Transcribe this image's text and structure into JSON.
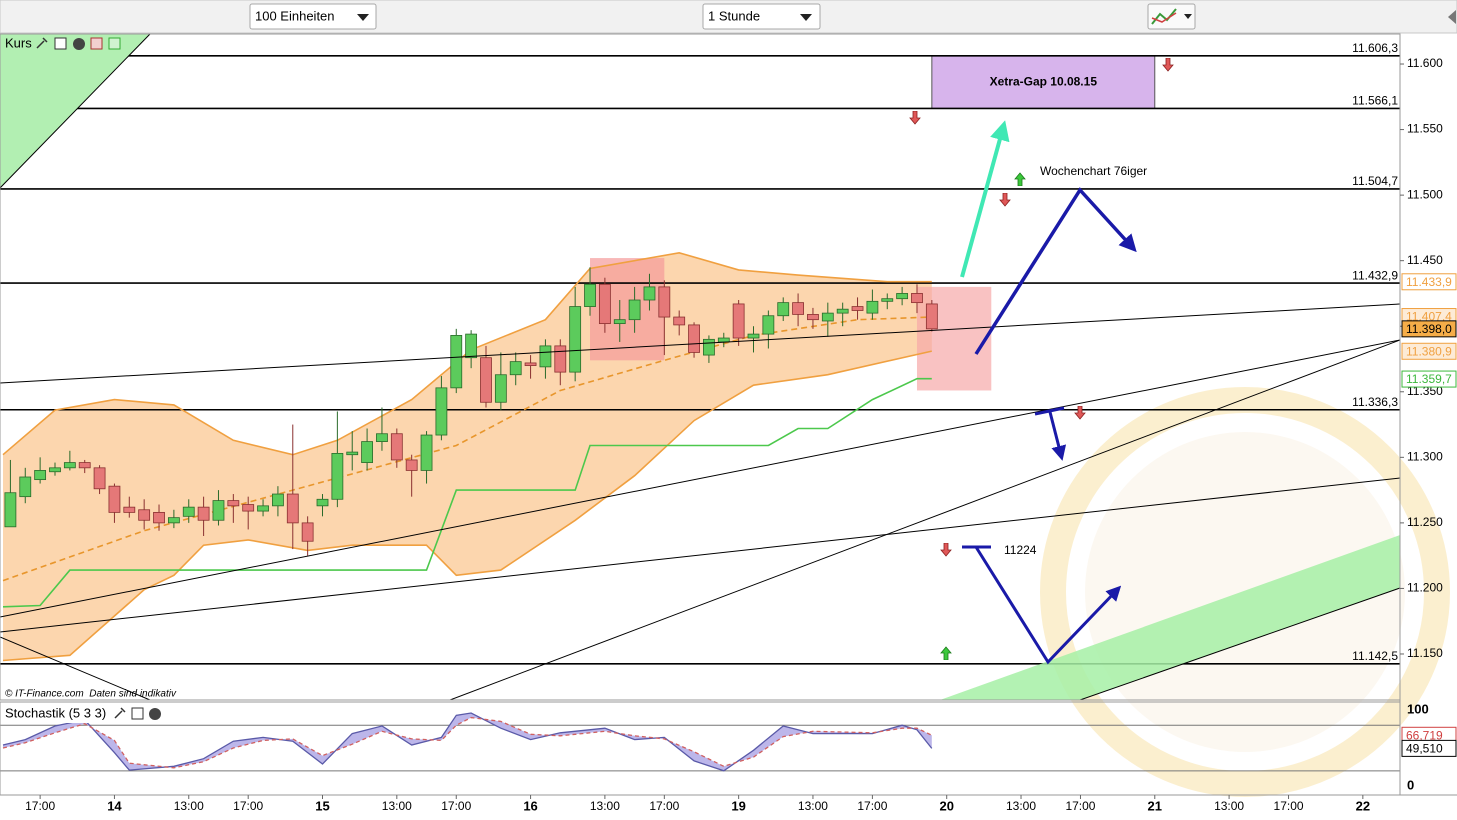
{
  "toolbar": {
    "units": "100 Einheiten",
    "interval": "1 Stunde"
  },
  "annotations": [
    "Wochenchart 76iger",
    "11224"
  ],
  "chart_data": [
    {
      "type": "candlestick",
      "title": "Kurs",
      "source": "© IT-Finance.com  Daten sind indikativ",
      "x": [
        -7,
        -6,
        -5,
        -4,
        -3,
        -2,
        -1,
        0,
        1,
        2,
        3,
        4,
        5,
        6,
        7,
        8,
        9,
        10,
        11,
        12,
        13,
        14,
        15,
        16,
        17,
        18,
        19,
        20,
        21,
        22,
        23,
        24,
        25,
        26,
        27,
        28,
        29,
        30,
        31,
        32,
        33,
        34,
        35,
        36,
        37,
        38,
        39,
        40,
        41,
        42,
        43,
        44,
        45,
        46,
        47,
        48,
        49,
        50,
        51,
        52,
        53,
        54,
        55
      ],
      "open": [
        11247,
        11270,
        11283,
        11289,
        11292,
        11296,
        11292,
        11278,
        11262,
        11260,
        11258,
        11250,
        11255,
        11262,
        11252,
        11267,
        11264,
        11259,
        11263,
        11272,
        11250,
        11263,
        11268,
        11302,
        11296,
        11312,
        11318,
        11298,
        11290,
        11317,
        11353,
        11376,
        11376,
        11342,
        11363,
        11372,
        11369,
        11385,
        11365,
        11415,
        11432,
        11402,
        11405,
        11420,
        11430,
        11407,
        11401,
        11378,
        11388,
        11417,
        11391,
        11394,
        11408,
        11418,
        11409,
        11404,
        11410,
        11415,
        11410,
        11419,
        11421,
        11425,
        11417
      ],
      "high": [
        11298,
        11292,
        11300,
        11296,
        11305,
        11298,
        11294,
        11280,
        11270,
        11268,
        11264,
        11260,
        11268,
        11270,
        11275,
        11272,
        11270,
        11268,
        11278,
        11325,
        11255,
        11272,
        11335,
        11320,
        11322,
        11338,
        11322,
        11302,
        11320,
        11362,
        11398,
        11397,
        11385,
        11380,
        11380,
        11378,
        11390,
        11390,
        11430,
        11445,
        11437,
        11420,
        11430,
        11440,
        11435,
        11412,
        11403,
        11393,
        11395,
        11420,
        11400,
        11412,
        11422,
        11425,
        11414,
        11418,
        11418,
        11422,
        11428,
        11425,
        11430,
        11432,
        11420
      ],
      "low": [
        11247,
        11265,
        11280,
        11286,
        11290,
        11288,
        11272,
        11250,
        11254,
        11245,
        11244,
        11246,
        11250,
        11240,
        11248,
        11250,
        11245,
        11255,
        11255,
        11230,
        11225,
        11255,
        11262,
        11290,
        11290,
        11305,
        11292,
        11270,
        11280,
        11313,
        11349,
        11368,
        11338,
        11336,
        11355,
        11360,
        11360,
        11355,
        11358,
        11408,
        11395,
        11388,
        11395,
        11412,
        11378,
        11393,
        11376,
        11372,
        11384,
        11385,
        11380,
        11383,
        11404,
        11400,
        11398,
        11392,
        11400,
        11405,
        11405,
        11413,
        11416,
        11410,
        11396
      ],
      "close": [
        11273,
        11285,
        11290,
        11292,
        11296,
        11292,
        11276,
        11258,
        11258,
        11252,
        11250,
        11254,
        11262,
        11252,
        11267,
        11263,
        11259,
        11263,
        11272,
        11250,
        11236,
        11268,
        11303,
        11304,
        11312,
        11318,
        11298,
        11290,
        11317,
        11353,
        11393,
        11394,
        11342,
        11363,
        11373,
        11370,
        11385,
        11365,
        11415,
        11432,
        11402,
        11405,
        11420,
        11430,
        11407,
        11401,
        11380,
        11390,
        11391,
        11391,
        11394,
        11408,
        11418,
        11409,
        11405,
        11410,
        11413,
        11412,
        11419,
        11421,
        11425,
        11418,
        11398
      ],
      "up_color": "#5ccb5c",
      "down_color": "#e57878",
      "xlim": [
        -7.7,
        86.5
      ],
      "ylim": [
        11114.9,
        11622.9
      ],
      "xticks": [
        {
          "value": -5,
          "label": "17:00"
        },
        {
          "value": 0,
          "label": "14"
        },
        {
          "value": 5,
          "label": "13:00"
        },
        {
          "value": 9,
          "label": "17:00"
        },
        {
          "value": 14,
          "label": "15"
        },
        {
          "value": 19,
          "label": "13:00"
        },
        {
          "value": 23,
          "label": "17:00"
        },
        {
          "value": 28,
          "label": "16"
        },
        {
          "value": 33,
          "label": "13:00"
        },
        {
          "value": 37,
          "label": "17:00"
        },
        {
          "value": 42,
          "label": "19"
        },
        {
          "value": 47,
          "label": "13:00"
        },
        {
          "value": 51,
          "label": "17:00"
        },
        {
          "value": 56,
          "label": "20"
        },
        {
          "value": 61,
          "label": "13:00"
        },
        {
          "value": 65,
          "label": "17:00"
        },
        {
          "value": 70,
          "label": "21"
        },
        {
          "value": 75,
          "label": "13:00"
        },
        {
          "value": 79,
          "label": "17:00"
        },
        {
          "value": 84,
          "label": "22"
        }
      ],
      "yticks": [
        {
          "value": 11150,
          "label": "11.150"
        },
        {
          "value": 11200,
          "label": "11.200"
        },
        {
          "value": 11250,
          "label": "11.250"
        },
        {
          "value": 11300,
          "label": "11.300"
        },
        {
          "value": 11350,
          "label": "11.350"
        },
        {
          "value": 11400,
          "label": "11.400"
        },
        {
          "value": 11450,
          "label": "11.450"
        },
        {
          "value": 11500,
          "label": "11.500"
        },
        {
          "value": 11550,
          "label": "11.550"
        },
        {
          "value": 11600,
          "label": "11.600"
        }
      ],
      "levels": [
        {
          "value": 11606.3,
          "label": "11.606,3"
        },
        {
          "value": 11566.1,
          "label": "11.566,1"
        },
        {
          "value": 11504.7,
          "label": "11.504,7"
        },
        {
          "value": 11432.9,
          "label": "11.432,9"
        },
        {
          "value": 11336.3,
          "label": "11.336,3"
        },
        {
          "value": 11142.5,
          "label": "11.142,5"
        }
      ],
      "band_fill": "#fcd6ae",
      "series": [
        {
          "color": "#f0a040",
          "x": [
            -7.5,
            -4,
            0,
            4,
            8,
            12,
            15,
            20,
            24,
            29,
            32,
            38,
            42,
            46,
            52,
            55
          ],
          "values": [
            11302,
            11336,
            11344,
            11340,
            11313,
            11302,
            11313,
            11344,
            11382,
            11405,
            11444,
            11456,
            11443,
            11439,
            11434,
            11434
          ]
        },
        {
          "color": "#f0a040",
          "x": [
            -7.5,
            -3,
            2,
            4,
            6,
            9,
            13,
            16,
            21,
            23,
            26,
            31,
            35,
            39,
            43,
            48,
            55
          ],
          "values": [
            11145,
            11149,
            11199,
            11210,
            11233,
            11237,
            11229,
            11233,
            11233,
            11210,
            11214,
            11252,
            11286,
            11328,
            11355,
            11363,
            11381
          ]
        },
        {
          "color": "#e8962c",
          "dash": true,
          "x": [
            -7.5,
            2,
            12,
            23,
            30,
            37,
            43,
            50,
            55
          ],
          "values": [
            11206,
            11244,
            11275,
            11309,
            11351,
            11374,
            11393,
            11405,
            11407
          ]
        },
        {
          "color": "#4cc84c",
          "x": [
            -7.5,
            -5,
            -3,
            21,
            23,
            31,
            32,
            44,
            46,
            48,
            51,
            54,
            55
          ],
          "values": [
            11186,
            11187,
            11214,
            11214,
            11275,
            11275,
            11309,
            11309,
            11322,
            11322,
            11344,
            11360,
            11360
          ]
        }
      ],
      "zones": [
        {
          "x": [
            32,
            37
          ],
          "y": [
            11374,
            11452
          ],
          "color": "#f59a9a"
        },
        {
          "x": [
            54,
            59
          ],
          "y": [
            11351,
            11430
          ],
          "color": "#f7a8a8"
        },
        {
          "x": [
            55,
            70
          ],
          "y": [
            11566.1,
            11606.3
          ],
          "color": "#d7b4ec",
          "label": "Xetra-Gap 10.08.15"
        }
      ],
      "price_labels": [
        {
          "value": 11433.9,
          "label": "11.433,9",
          "color": "#f0a040",
          "bg": "#ffffff"
        },
        {
          "value": 11407.4,
          "label": "11.407,4",
          "color": "#f0a040",
          "bg": "#fdebd6"
        },
        {
          "value": 11380.9,
          "label": "11.380,9",
          "color": "#f0a040",
          "bg": "#fdebd6"
        },
        {
          "value": 11359.7,
          "label": "11.359,7",
          "color": "#3cb83c",
          "bg": "#ffffff"
        },
        {
          "value": 11398.0,
          "label": "11.398,0",
          "color": "#000000",
          "bg": "#f5ad48"
        }
      ]
    },
    {
      "type": "line",
      "title": "Stochastik (5 3 3)",
      "x": [
        -7.5,
        -6,
        -4,
        -2,
        0,
        1,
        4,
        6,
        8,
        10,
        12,
        14,
        16,
        18,
        20,
        22,
        23,
        24,
        26,
        28,
        30,
        33,
        35,
        37,
        39,
        41,
        43,
        45,
        47,
        51,
        53,
        54,
        55
      ],
      "fill": "#bcb6ea",
      "series": [
        {
          "color": "#5a5aa8",
          "values": [
            54,
            61,
            79,
            87,
            44,
            21,
            26,
            36,
            59,
            64,
            59,
            29,
            69,
            79,
            54,
            64,
            93,
            96,
            76,
            61,
            70,
            76,
            61,
            64,
            33,
            20,
            47,
            79,
            69,
            69,
            80,
            74,
            49.51
          ]
        },
        {
          "color": "#d06060",
          "dash": true,
          "values": [
            50,
            57,
            70,
            82,
            60,
            30,
            24,
            32,
            50,
            60,
            62,
            40,
            55,
            72,
            62,
            60,
            80,
            90,
            85,
            68,
            66,
            72,
            66,
            62,
            45,
            26,
            38,
            65,
            72,
            70,
            76,
            76,
            66.719
          ]
        }
      ],
      "ylim": [
        -11.8,
        110.5
      ],
      "yticks": [
        0,
        100
      ],
      "levels": [
        20,
        80
      ],
      "price_labels": [
        {
          "value": 66.719,
          "label": "66,719",
          "color": "#d04040",
          "bg": "#ffffff"
        },
        {
          "value": 49.51,
          "label": "49,510",
          "color": "#000000",
          "bg": "#ffffff"
        }
      ]
    }
  ]
}
